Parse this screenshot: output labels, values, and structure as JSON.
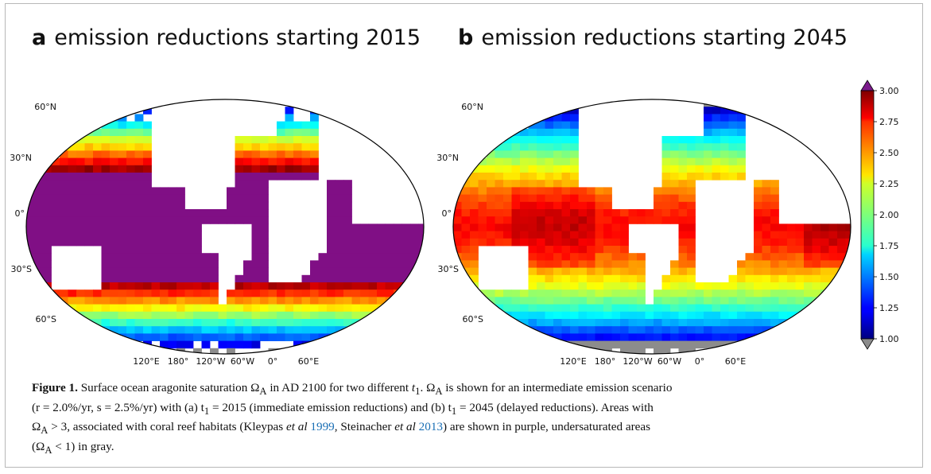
{
  "panels": [
    {
      "letter": "a",
      "title": "emission reductions starting 2015",
      "start_year": 2015
    },
    {
      "letter": "b",
      "title": "emission reductions starting 2045",
      "start_year": 2045
    }
  ],
  "latitude_labels": [
    "60°N",
    "30°N",
    "0°",
    "30°S",
    "60°S"
  ],
  "longitude_labels": [
    "120°E",
    "180°",
    "120°W",
    "60°W",
    "0°",
    "60°E"
  ],
  "colorbar": {
    "ticks": [
      "3.00",
      "2.75",
      "2.50",
      "2.25",
      "2.00",
      "1.75",
      "1.50",
      "1.25",
      "1.00"
    ],
    "min": 1.0,
    "max": 3.0,
    "over_color": "#7b1a8b",
    "under_color": "#8c8c8c",
    "colormap": "jet"
  },
  "colors": {
    "supersaturated_purple": "#800f85",
    "undersaturated_gray": "#8c8c8c",
    "land_white": "#ffffff",
    "link_blue": "#1a6fb5"
  },
  "caption": {
    "label": "Figure 1.",
    "s1": " Surface ocean aragonite saturation Ω",
    "s2": " in AD 2100 for two different ",
    "s3": ". Ω",
    "s4": " is shown for an intermediate emission scenario",
    "s5": "(r = 2.0%/yr, s = 2.5%/yr) with (a) t",
    "s6": " = 2015 (immediate emission reductions) and (b) t",
    "s7": " = 2045 (delayed reductions). Areas with",
    "s8": "Ω",
    "s9": " > 3, associated with coral reef habitats (Kleypas ",
    "s10": "et al",
    "s11": " ",
    "ref1": "1999",
    "s12": ", Steinacher ",
    "s13": "et al",
    "s14": " ",
    "ref2": "2013",
    "s15": ") are shown in purple, undersaturated areas",
    "s16": "(Ω",
    "s17": " < 1) in gray.",
    "sub_A": "A",
    "sub_1": "1",
    "t": "t"
  }
}
